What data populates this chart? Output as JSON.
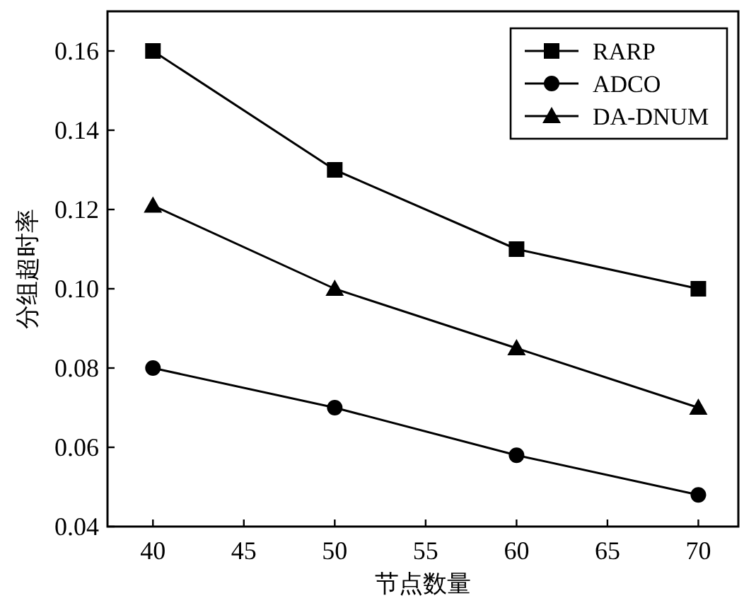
{
  "chart_data": {
    "type": "line",
    "xlabel": "节点数量",
    "ylabel": "分组超时率",
    "x": [
      40,
      50,
      60,
      70
    ],
    "series": [
      {
        "name": "RARP",
        "color": "#000000",
        "marker": "square",
        "values": [
          0.16,
          0.13,
          0.11,
          0.1
        ]
      },
      {
        "name": "ADCO",
        "color": "#000000",
        "marker": "circle",
        "values": [
          0.08,
          0.07,
          0.058,
          0.048
        ]
      },
      {
        "name": "DA-DNUM",
        "color": "#000000",
        "marker": "triangle",
        "values": [
          0.121,
          0.1,
          0.085,
          0.07
        ]
      }
    ],
    "xlim": [
      37.5,
      72.2
    ],
    "xticks": [
      40,
      45,
      50,
      55,
      60,
      65,
      70
    ],
    "ylim": [
      0.04,
      0.17
    ],
    "yticks": [
      {
        "value": 0.04,
        "label": "0.04"
      },
      {
        "value": 0.06,
        "label": "0.06"
      },
      {
        "value": 0.08,
        "label": "0.08"
      },
      {
        "value": 0.1,
        "label": "0.10"
      },
      {
        "value": 0.12,
        "label": "0.12"
      },
      {
        "value": 0.14,
        "label": "0.14"
      },
      {
        "value": 0.16,
        "label": "0.16"
      }
    ],
    "grid": false,
    "legend": "top right",
    "line_style": "solid"
  }
}
